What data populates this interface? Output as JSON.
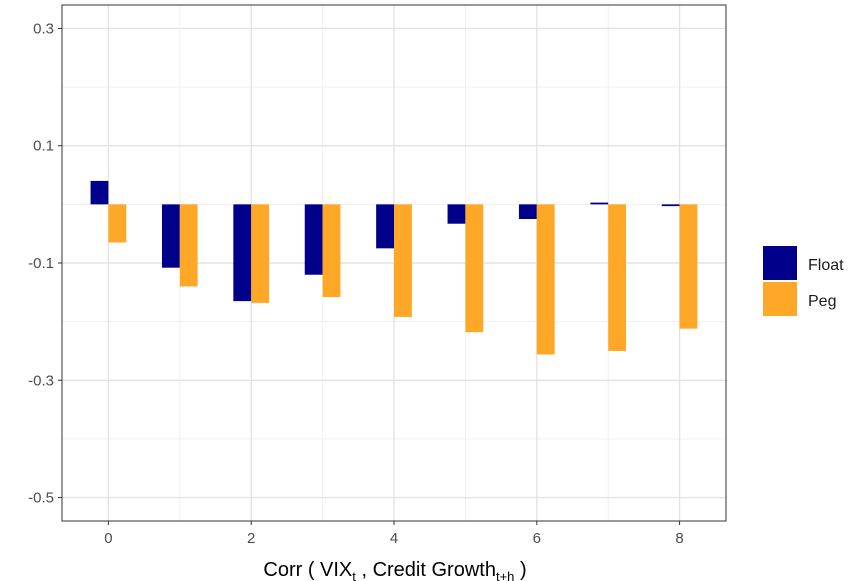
{
  "chart_data": {
    "type": "bar",
    "categories": [
      "0",
      "1",
      "2",
      "3",
      "4",
      "5",
      "6",
      "7",
      "8"
    ],
    "series": [
      {
        "name": "Float",
        "color": "#00008b",
        "values": [
          0.04,
          -0.108,
          -0.165,
          -0.12,
          -0.075,
          -0.033,
          -0.025,
          0.003,
          -0.003
        ]
      },
      {
        "name": "Peg",
        "color": "#ffa726",
        "values": [
          -0.065,
          -0.14,
          -0.168,
          -0.158,
          -0.192,
          -0.218,
          -0.256,
          -0.25,
          -0.212
        ]
      }
    ],
    "y_ticks": [
      "0.3",
      "0.1",
      "-0.1",
      "-0.3",
      "-0.5"
    ],
    "x_ticks": [
      "0",
      "2",
      "4",
      "6",
      "8"
    ],
    "ylim": [
      -0.54,
      0.34
    ],
    "xlim": [
      -0.65,
      8.65
    ],
    "xlabel": {
      "main": "Corr ( VIX",
      "sub1": "t",
      "mid": " , Credit Growth",
      "sub2": "t+h",
      "end": " )"
    },
    "legend": {
      "position": "right"
    },
    "grid": true
  }
}
